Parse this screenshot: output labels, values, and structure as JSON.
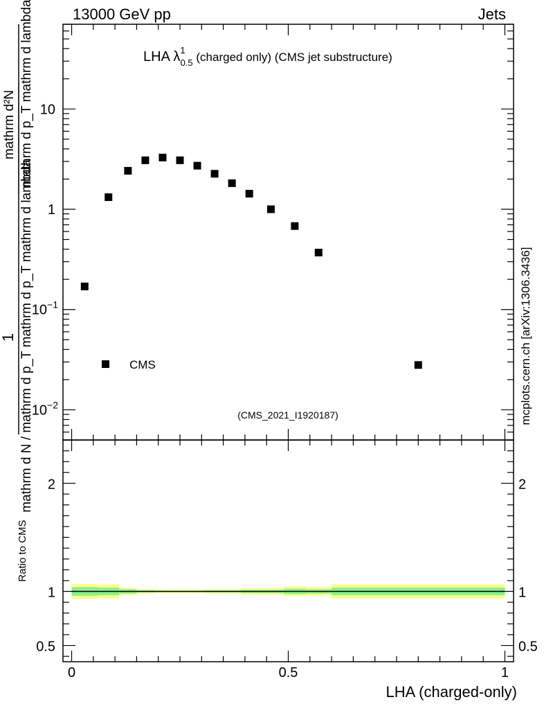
{
  "header": {
    "energy_label": "13000 GeV pp",
    "category_label": "Jets"
  },
  "side_label": "mcplots.cern.ch [arXiv:1306.3436]",
  "analysis_id": "(CMS_2021_I1920187)",
  "x_axis_label": "LHA (charged-only)",
  "chart_data": [
    {
      "type": "scatter",
      "title": {
        "prefix": "LHA λ",
        "sup": "1",
        "sub": "0.5",
        "suffix": " (charged only) (CMS jet substructure)"
      },
      "ylabel": {
        "numerator": "1",
        "denominator": "mathrm d N / mathrm d p_T mathrm d p_T mathrm d lambda",
        "upper_fraction_top": "mathrm d²N",
        "upper_fraction_bottom": "mathrm d p_T mathrm d lambda"
      },
      "yscale": "log",
      "ylim": [
        0.005,
        70
      ],
      "xlim": [
        -0.02,
        1.02
      ],
      "ytick_labels": [
        {
          "value": 10,
          "base": "10",
          "exp": ""
        },
        {
          "value": 1,
          "base": "1",
          "exp": ""
        },
        {
          "value": 0.1,
          "base": "10",
          "exp": "−1"
        },
        {
          "value": 0.01,
          "base": "10",
          "exp": "−2"
        }
      ],
      "legend": {
        "label": "CMS",
        "placement": "bottom-left"
      },
      "series": [
        {
          "name": "CMS",
          "x": [
            0.03,
            0.085,
            0.13,
            0.17,
            0.21,
            0.25,
            0.29,
            0.33,
            0.37,
            0.41,
            0.46,
            0.515,
            0.57,
            0.8
          ],
          "values": [
            0.17,
            1.32,
            2.42,
            3.08,
            3.28,
            3.08,
            2.72,
            2.26,
            1.82,
            1.43,
            1.0,
            0.68,
            0.37,
            0.028
          ]
        }
      ]
    },
    {
      "type": "line",
      "title": "Ratio to CMS",
      "ylabel": "Ratio to CMS",
      "ylim": [
        0.35,
        2.4
      ],
      "xlim": [
        -0.02,
        1.02
      ],
      "ytick_labels": [
        "2",
        "1",
        "0.5"
      ],
      "xtick_labels": [
        "0",
        "0.5",
        "1"
      ],
      "reference_value": 1,
      "bands": [
        {
          "x0": 0.0,
          "x1": 0.06,
          "outer": 0.07,
          "inner": 0.04
        },
        {
          "x0": 0.06,
          "x1": 0.11,
          "outer": 0.065,
          "inner": 0.035
        },
        {
          "x0": 0.11,
          "x1": 0.15,
          "outer": 0.035,
          "inner": 0.02
        },
        {
          "x0": 0.15,
          "x1": 0.19,
          "outer": 0.02,
          "inner": 0.01
        },
        {
          "x0": 0.19,
          "x1": 0.31,
          "outer": 0.015,
          "inner": 0.008
        },
        {
          "x0": 0.31,
          "x1": 0.39,
          "outer": 0.02,
          "inner": 0.01
        },
        {
          "x0": 0.39,
          "x1": 0.49,
          "outer": 0.03,
          "inner": 0.015
        },
        {
          "x0": 0.49,
          "x1": 0.54,
          "outer": 0.045,
          "inner": 0.025
        },
        {
          "x0": 0.54,
          "x1": 0.6,
          "outer": 0.04,
          "inner": 0.02
        },
        {
          "x0": 0.6,
          "x1": 1.0,
          "outer": 0.065,
          "inner": 0.035
        }
      ],
      "colors": {
        "outer_band": "#ffff8c",
        "inner_band": "#8cf08c",
        "line": "#000000"
      }
    }
  ],
  "colors": {
    "marker": "#000000",
    "analysis_id": "#999999",
    "side_label": "#666666"
  }
}
